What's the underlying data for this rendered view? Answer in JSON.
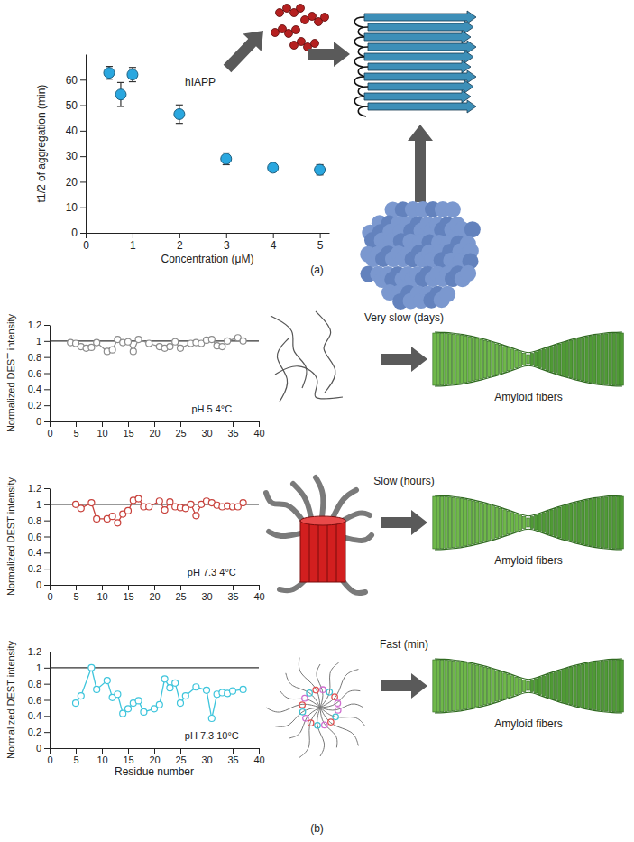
{
  "chart_data": [
    {
      "type": "scatter",
      "panel_label": "(a)",
      "x_label": "Concentration (μM)",
      "y_label": "t1/2 of aggregation (min)",
      "annotations": [
        "hIAPP"
      ],
      "x": [
        0.5,
        0.75,
        1,
        2,
        3,
        4,
        5
      ],
      "values": [
        62.7,
        54.2,
        62,
        46.5,
        29,
        25.5,
        24.7
      ],
      "errors": [
        2.5,
        4.7,
        2.8,
        3.6,
        2.3,
        1.5,
        2
      ],
      "color": "#2aa7df",
      "marker": "circle",
      "xlim": [
        0,
        5.2
      ],
      "xticks": [
        0,
        1,
        2,
        3,
        4,
        5
      ],
      "ylim": [
        0,
        70
      ],
      "yticks": [
        0,
        10,
        20,
        30,
        40,
        50,
        60
      ]
    },
    {
      "type": "line",
      "y_label": "Normalized DEST intensity",
      "annotations": [
        "pH 5 4°C",
        "Very slow (days)",
        "Amyloid fibers"
      ],
      "x": [
        4,
        5,
        6,
        7,
        8,
        9,
        11,
        12,
        13,
        14,
        15,
        16,
        17,
        19,
        21,
        22,
        23,
        24,
        25,
        27,
        28,
        29,
        30,
        31,
        32,
        33,
        34,
        36,
        37
      ],
      "values": [
        0.98,
        0.97,
        0.93,
        0.91,
        0.92,
        0.98,
        0.87,
        0.89,
        1.02,
        0.98,
        0.99,
        0.87,
        1.02,
        0.97,
        0.93,
        0.91,
        0.93,
        0.99,
        0.91,
        0.97,
        0.98,
        0.97,
        1.01,
        1.02,
        0.94,
        0.93,
        1,
        1.04,
        1
      ],
      "hline": 1,
      "color": "#8c8c8c",
      "marker": "circle",
      "line_style": "solid",
      "xlim": [
        0,
        40
      ],
      "xticks": [
        0,
        5,
        10,
        15,
        20,
        25,
        30,
        35,
        40
      ],
      "ylim": [
        0,
        1.2
      ],
      "yticks": [
        0,
        0.2,
        0.4,
        0.6,
        0.8,
        1,
        1.2
      ]
    },
    {
      "type": "line",
      "y_label": "Normalized DEST intensity",
      "annotations": [
        "pH 7.3 4°C",
        "Slow (hours)",
        "Amyloid fibers"
      ],
      "x": [
        5,
        6,
        8,
        9,
        11,
        12,
        13,
        14,
        15,
        16,
        17,
        18,
        19,
        21,
        22,
        23,
        24,
        25,
        26,
        27,
        28,
        29,
        30,
        31,
        32,
        33,
        34,
        35,
        36,
        37
      ],
      "values": [
        1,
        0.95,
        1.02,
        0.82,
        0.82,
        0.85,
        0.77,
        0.88,
        0.92,
        1.05,
        1.07,
        0.97,
        0.97,
        1.04,
        0.93,
        1.03,
        0.97,
        0.96,
        0.95,
        1,
        0.86,
        1,
        1.04,
        1.02,
        0.99,
        0.97,
        0.98,
        0.97,
        0.97,
        1.02
      ],
      "hline": 1,
      "color": "#c8413b",
      "marker": "circle",
      "line_style": "solid",
      "xlim": [
        0,
        40
      ],
      "xticks": [
        0,
        5,
        10,
        15,
        20,
        25,
        30,
        35,
        40
      ],
      "ylim": [
        0,
        1.2
      ],
      "yticks": [
        0,
        0.2,
        0.4,
        0.6,
        0.8,
        1,
        1.2
      ]
    },
    {
      "type": "line",
      "panel_label": "(b)",
      "x_label": "Residue number",
      "y_label": "Normalized DEST intensity",
      "annotations": [
        "pH 7.3 10°C",
        "Fast (min)",
        "Amyloid fibers"
      ],
      "x": [
        5,
        6,
        8,
        9,
        11,
        12,
        13,
        14,
        15,
        16,
        17,
        18,
        20,
        21,
        22,
        23,
        24,
        25,
        26,
        28,
        30,
        31,
        32,
        33,
        34,
        35,
        37
      ],
      "values": [
        0.56,
        0.65,
        1,
        0.73,
        0.84,
        0.63,
        0.67,
        0.43,
        0.49,
        0.56,
        0.59,
        0.45,
        0.49,
        0.54,
        0.86,
        0.75,
        0.81,
        0.56,
        0.65,
        0.76,
        0.72,
        0.37,
        0.67,
        0.69,
        0.68,
        0.71,
        0.73
      ],
      "hline": 1,
      "color": "#3ec5dc",
      "marker": "circle",
      "line_style": "solid",
      "xlim": [
        0,
        40
      ],
      "xticks": [
        0,
        5,
        10,
        15,
        20,
        25,
        30,
        35,
        40
      ],
      "ylim": [
        0,
        1.2
      ],
      "yticks": [
        0,
        0.2,
        0.4,
        0.6,
        0.8,
        1,
        1.2
      ]
    }
  ]
}
